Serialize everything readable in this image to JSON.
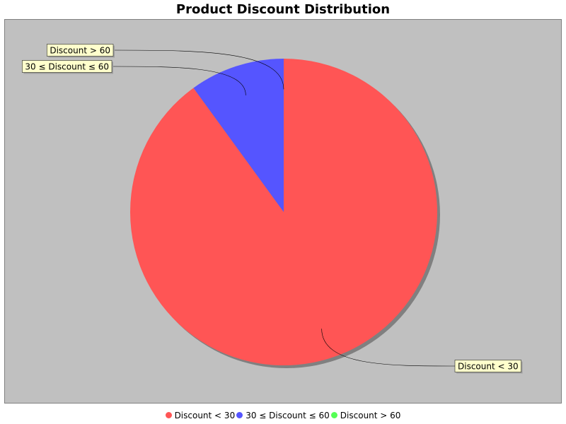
{
  "chart_data": {
    "type": "pie",
    "title": "Product Discount Distribution",
    "categories": [
      "Discount < 30",
      "30 ≤ Discount ≤ 60",
      "Discount > 60"
    ],
    "values": [
      90,
      10,
      0
    ],
    "colors": [
      "#ff5555",
      "#5555ff",
      "#55ff55"
    ],
    "background": "#c0c0c0",
    "label_box_color": "#ffffcc",
    "legend_position": "bottom"
  }
}
